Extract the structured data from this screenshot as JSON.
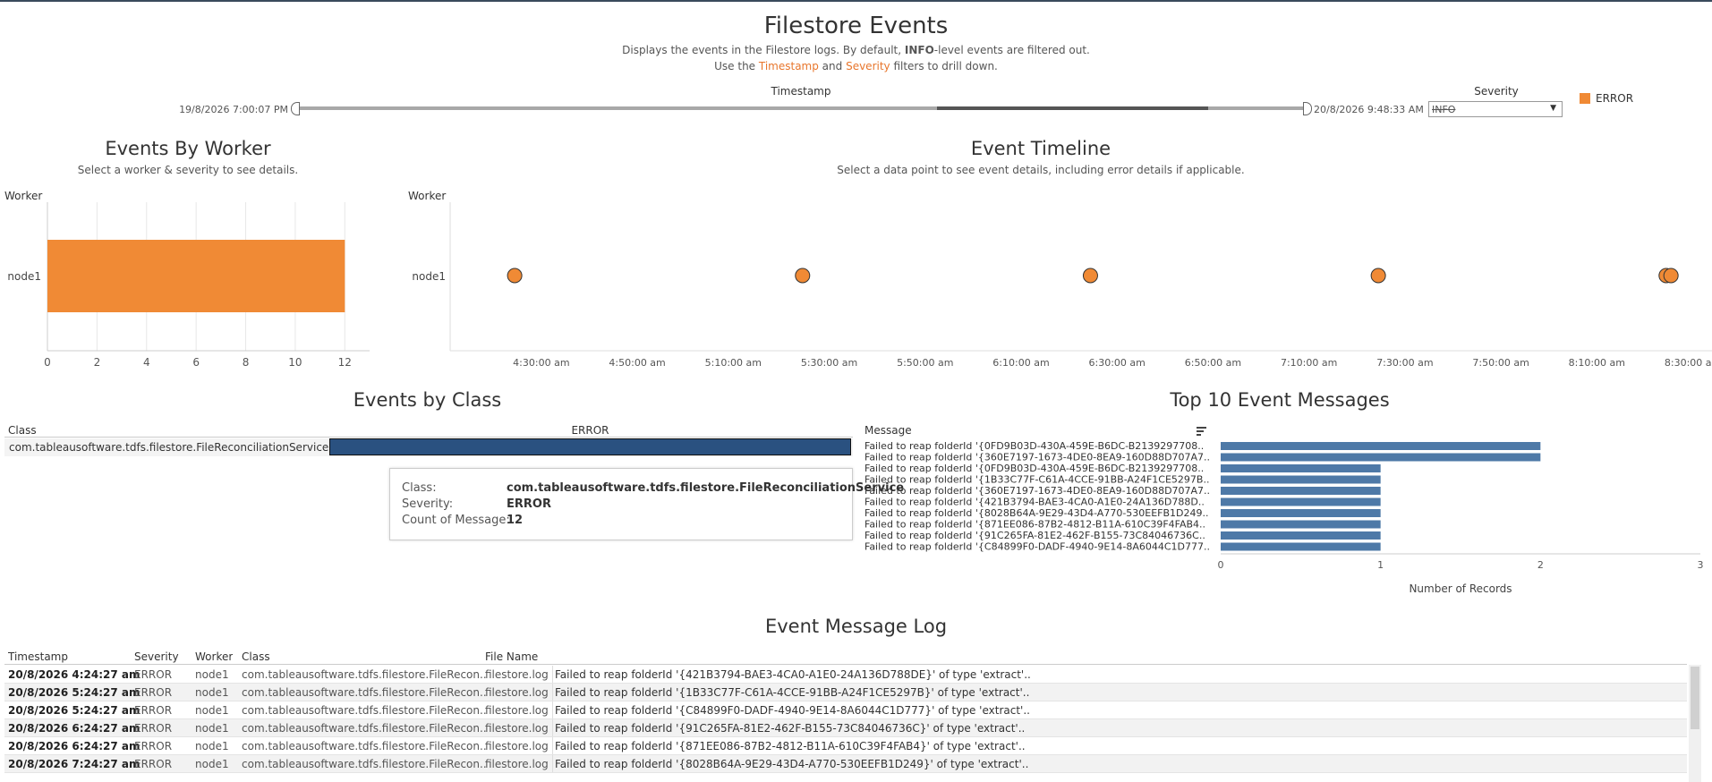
{
  "header": {
    "title": "Filestore Events",
    "desc1_a": "Displays the events in the Filestore logs.  By default, ",
    "desc1_b": "INFO",
    "desc1_c": "-level events are filtered out.",
    "desc2_a": "Use the ",
    "desc2_ts": "Timestamp",
    "desc2_and": " and ",
    "desc2_sev": "Severity",
    "desc2_c": " filters to drill down."
  },
  "filters": {
    "timestamp_label": "Timestamp",
    "timestamp_start": "19/8/2026 7:00:07 PM",
    "timestamp_end": "20/8/2026 9:48:33 AM",
    "severity_label": "Severity",
    "severity_value": "INFO",
    "legend_label": "ERROR",
    "legend_color": "#f08a35"
  },
  "events_by_worker": {
    "title": "Events By Worker",
    "subtitle": "Select a worker & severity to see details.",
    "axis_header": "Worker"
  },
  "event_timeline": {
    "title": "Event Timeline",
    "subtitle": "Select a data point to see event details, including error details if applicable.",
    "axis_header": "Worker"
  },
  "events_by_class": {
    "title": "Events by Class",
    "col_class": "Class",
    "col_error": "ERROR",
    "class_name": "com.tableausoftware.tdfs.filestore.FileReconciliationService",
    "bar_color": "#2a5180",
    "tooltip": {
      "class_label": "Class:",
      "class_value": "com.tableausoftware.tdfs.filestore.FileReconciliationService",
      "severity_label": "Severity:",
      "severity_value": "ERROR",
      "count_label": "Count of Message:",
      "count_value": "12"
    }
  },
  "top_messages": {
    "title": "Top 10 Event Messages",
    "col_message": "Message",
    "xlabel": "Number of Records"
  },
  "event_log": {
    "title": "Event Message Log",
    "columns": [
      "Timestamp",
      "Severity",
      "Worker",
      "Class",
      "File Name"
    ],
    "rows": [
      {
        "ts": "20/8/2026 4:24:27 am",
        "sev": "ERROR",
        "worker": "node1",
        "cls": "com.tableausoftware.tdfs.filestore.FileRecon..",
        "file": "filestore.log",
        "msg": "Failed to reap folderId '{421B3794-BAE3-4CA0-A1E0-24A136D788DE}' of type 'extract'.."
      },
      {
        "ts": "20/8/2026 5:24:27 am",
        "sev": "ERROR",
        "worker": "node1",
        "cls": "com.tableausoftware.tdfs.filestore.FileRecon..",
        "file": "filestore.log",
        "msg": "Failed to reap folderId '{1B33C77F-C61A-4CCE-91BB-A24F1CE5297B}' of type 'extract'.."
      },
      {
        "ts": "20/8/2026 5:24:27 am",
        "sev": "ERROR",
        "worker": "node1",
        "cls": "com.tableausoftware.tdfs.filestore.FileRecon..",
        "file": "filestore.log",
        "msg": "Failed to reap folderId '{C84899F0-DADF-4940-9E14-8A6044C1D777}' of type 'extract'.."
      },
      {
        "ts": "20/8/2026 6:24:27 am",
        "sev": "ERROR",
        "worker": "node1",
        "cls": "com.tableausoftware.tdfs.filestore.FileRecon..",
        "file": "filestore.log",
        "msg": "Failed to reap folderId '{91C265FA-81E2-462F-B155-73C84046736C}' of type 'extract'.."
      },
      {
        "ts": "20/8/2026 6:24:27 am",
        "sev": "ERROR",
        "worker": "node1",
        "cls": "com.tableausoftware.tdfs.filestore.FileRecon..",
        "file": "filestore.log",
        "msg": "Failed to reap folderId '{871EE086-87B2-4812-B11A-610C39F4FAB4}' of type 'extract'.."
      },
      {
        "ts": "20/8/2026 7:24:27 am",
        "sev": "ERROR",
        "worker": "node1",
        "cls": "com.tableausoftware.tdfs.filestore.FileRecon..",
        "file": "filestore.log",
        "msg": "Failed to reap folderId '{8028B64A-9E29-43D4-A770-530EEFB1D249}' of type 'extract'.."
      }
    ]
  },
  "chart_data": [
    {
      "type": "bar",
      "orientation": "horizontal",
      "title": "Events By Worker",
      "categories": [
        "node1"
      ],
      "values": [
        12
      ],
      "ylabel": "Worker",
      "xlim": [
        0,
        13
      ],
      "xticks": [
        0,
        2,
        4,
        6,
        8,
        10,
        12
      ],
      "color": "#f08a35"
    },
    {
      "type": "scatter",
      "title": "Event Timeline",
      "ylabel": "Worker",
      "categories": [
        "node1"
      ],
      "x": [
        "4:24:27 am",
        "5:24:27 am",
        "6:24:27 am",
        "7:24:27 am",
        "8:24:27 am",
        "8:25:27 am"
      ],
      "x_minutes": [
        264.45,
        324.45,
        384.45,
        444.45,
        504.45,
        505.45
      ],
      "xlim_minutes": [
        251,
        514
      ],
      "xticks": [
        "4:30:00 am",
        "4:50:00 am",
        "5:10:00 am",
        "5:30:00 am",
        "5:50:00 am",
        "6:10:00 am",
        "6:30:00 am",
        "6:50:00 am",
        "7:10:00 am",
        "7:30:00 am",
        "7:50:00 am",
        "8:10:00 am",
        "8:30:00 am"
      ],
      "xticks_minutes": [
        270,
        290,
        310,
        330,
        350,
        370,
        390,
        410,
        430,
        450,
        470,
        490,
        510
      ],
      "color": "#f08a35"
    },
    {
      "type": "bar",
      "orientation": "horizontal",
      "title": "Events by Class",
      "categories": [
        "com.tableausoftware.tdfs.filestore.FileReconciliationService"
      ],
      "series": [
        {
          "name": "ERROR",
          "values": [
            12
          ]
        }
      ],
      "color": "#2a5180"
    },
    {
      "type": "bar",
      "orientation": "horizontal",
      "title": "Top 10 Event Messages",
      "categories": [
        "Failed to reap folderId '{0FD9B03D-430A-459E-B6DC-B2139297708..",
        "Failed to reap folderId '{360E7197-1673-4DE0-8EA9-160D88D707A7..",
        "Failed to reap folderId '{0FD9B03D-430A-459E-B6DC-B2139297708..",
        "Failed to reap folderId '{1B33C77F-C61A-4CCE-91BB-A24F1CE5297B..",
        "Failed to reap folderId '{360E7197-1673-4DE0-8EA9-160D88D707A7..",
        "Failed to reap folderId '{421B3794-BAE3-4CA0-A1E0-24A136D788D..",
        "Failed to reap folderId '{8028B64A-9E29-43D4-A770-530EEFB1D249..",
        "Failed to reap folderId '{871EE086-87B2-4812-B11A-610C39F4FAB4..",
        "Failed to reap folderId '{91C265FA-81E2-462F-B155-73C84046736C..",
        "Failed to reap folderId '{C84899F0-DADF-4940-9E14-8A6044C1D777.."
      ],
      "values": [
        2,
        2,
        1,
        1,
        1,
        1,
        1,
        1,
        1,
        1
      ],
      "xlabel": "Number of Records",
      "xlim": [
        0,
        3
      ],
      "xticks": [
        0,
        1,
        2,
        3
      ],
      "color": "#4e79a7"
    }
  ]
}
